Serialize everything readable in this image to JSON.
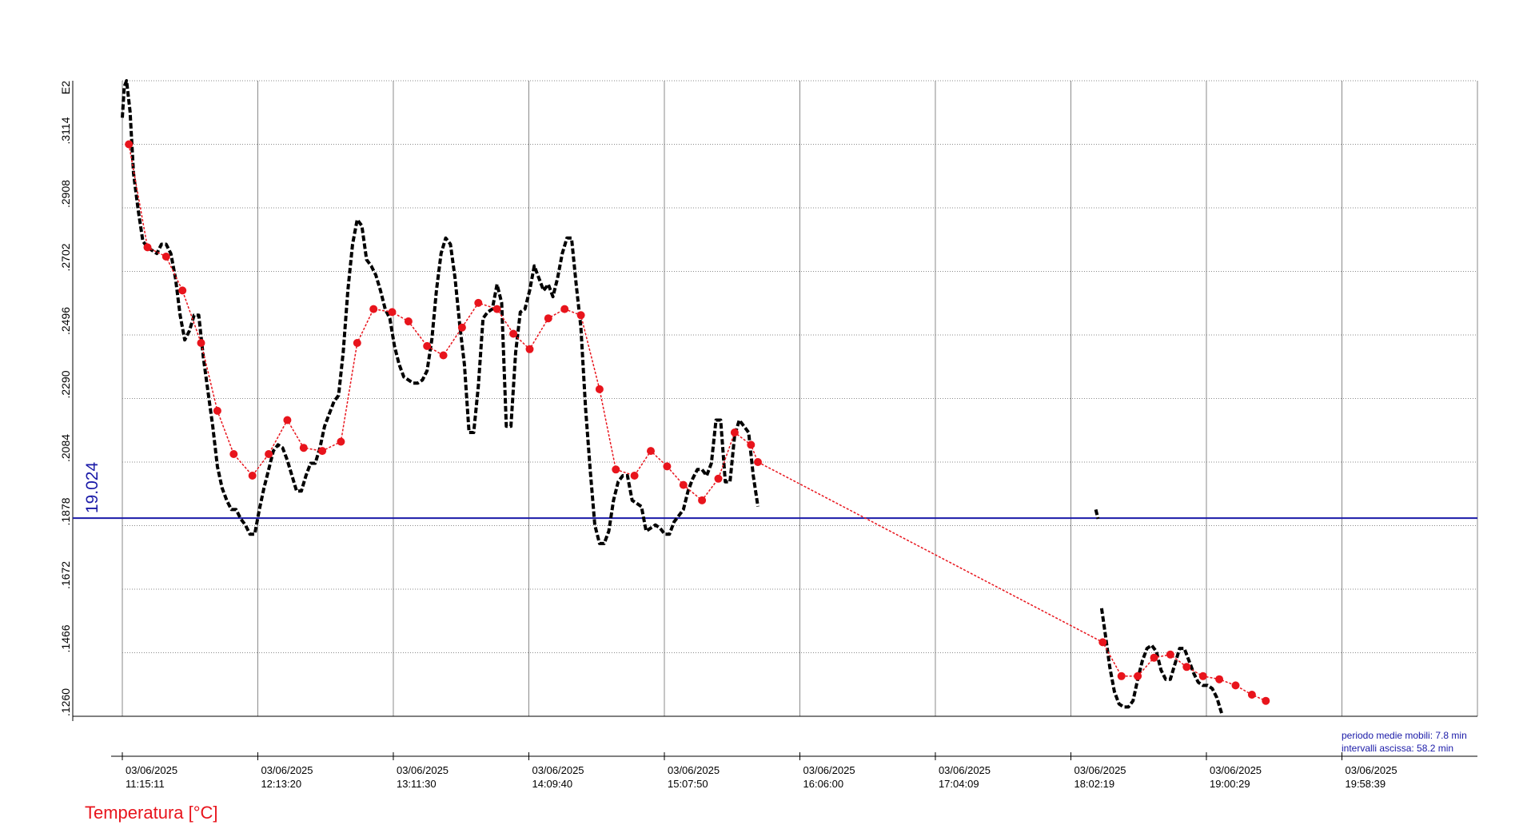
{
  "chart_data": {
    "type": "line",
    "y_exponent_label": "E2",
    "ylabel": "Temperatura [°C]",
    "ylim": [
      0.126,
      0.332
    ],
    "ytick_values": [
      0.126,
      0.1466,
      0.1672,
      0.1878,
      0.2084,
      0.229,
      0.2496,
      0.2702,
      0.2908,
      0.3114
    ],
    "ytick_labels": [
      ".1260",
      ".1466",
      ".1672",
      ".1878",
      ".2084",
      ".2290",
      ".2496",
      ".2702",
      ".2908",
      ".3114"
    ],
    "x_start": "11:15:11",
    "x_end": "20:56:49",
    "xtick_labels": [
      {
        "date": "03/06/2025",
        "time": "11:15:11"
      },
      {
        "date": "03/06/2025",
        "time": "12:13:20"
      },
      {
        "date": "03/06/2025",
        "time": "13:11:30"
      },
      {
        "date": "03/06/2025",
        "time": "14:09:40"
      },
      {
        "date": "03/06/2025",
        "time": "15:07:50"
      },
      {
        "date": "03/06/2025",
        "time": "16:06:00"
      },
      {
        "date": "03/06/2025",
        "time": "17:04:09"
      },
      {
        "date": "03/06/2025",
        "time": "18:02:19"
      },
      {
        "date": "03/06/2025",
        "time": "19:00:29"
      },
      {
        "date": "03/06/2025",
        "time": "19:58:39"
      }
    ],
    "reference_line": {
      "value": 0.19024,
      "label": "19.024",
      "color": "#1a1aa8"
    },
    "annotations": [
      "periodo medie mobili: 7.8 min",
      "intervalli ascissa: 58.2 min"
    ],
    "grid": true,
    "series": [
      {
        "kind": "raw",
        "color": "#000000",
        "segments": [
          [
            [
              "11:15:11",
              0.32
            ],
            [
              "11:16:00",
              0.33
            ],
            [
              "11:17:00",
              0.332
            ],
            [
              "11:18:30",
              0.322
            ],
            [
              "11:20:00",
              0.302
            ],
            [
              "11:22:00",
              0.29
            ],
            [
              "11:24:00",
              0.28
            ],
            [
              "11:26:00",
              0.278
            ],
            [
              "11:28:00",
              0.277
            ],
            [
              "11:30:00",
              0.276
            ],
            [
              "11:32:00",
              0.279
            ],
            [
              "11:34:00",
              0.279
            ],
            [
              "11:36:00",
              0.276
            ],
            [
              "11:38:00",
              0.268
            ],
            [
              "11:40:00",
              0.256
            ],
            [
              "11:42:00",
              0.248
            ],
            [
              "11:44:00",
              0.251
            ],
            [
              "11:46:00",
              0.256
            ],
            [
              "11:48:00",
              0.256
            ],
            [
              "11:50:00",
              0.242
            ],
            [
              "11:52:00",
              0.231
            ],
            [
              "11:54:00",
              0.22
            ],
            [
              "11:56:00",
              0.207
            ],
            [
              "11:58:00",
              0.2
            ],
            [
              "12:00:00",
              0.196
            ],
            [
              "12:02:00",
              0.193
            ],
            [
              "12:04:00",
              0.193
            ],
            [
              "12:06:00",
              0.19
            ],
            [
              "12:08:00",
              0.188
            ],
            [
              "12:10:00",
              0.185
            ],
            [
              "12:12:00",
              0.185
            ],
            [
              "12:14:00",
              0.193
            ],
            [
              "12:16:00",
              0.2
            ],
            [
              "12:18:00",
              0.206
            ],
            [
              "12:20:00",
              0.212
            ],
            [
              "12:22:00",
              0.214
            ],
            [
              "12:24:00",
              0.213
            ],
            [
              "12:26:00",
              0.209
            ],
            [
              "12:28:00",
              0.204
            ],
            [
              "12:30:00",
              0.199
            ],
            [
              "12:32:00",
              0.199
            ],
            [
              "12:34:00",
              0.204
            ],
            [
              "12:36:00",
              0.208
            ],
            [
              "12:38:00",
              0.208
            ],
            [
              "12:40:00",
              0.213
            ],
            [
              "12:42:00",
              0.22
            ],
            [
              "12:44:00",
              0.224
            ],
            [
              "12:46:00",
              0.228
            ],
            [
              "12:48:00",
              0.23
            ],
            [
              "12:50:00",
              0.244
            ],
            [
              "12:52:00",
              0.264
            ],
            [
              "12:54:00",
              0.279
            ],
            [
              "12:56:00",
              0.287
            ],
            [
              "12:58:00",
              0.285
            ],
            [
              "13:00:00",
              0.274
            ],
            [
              "13:02:00",
              0.272
            ],
            [
              "13:04:00",
              0.269
            ],
            [
              "13:06:00",
              0.264
            ],
            [
              "13:08:00",
              0.258
            ],
            [
              "13:10:00",
              0.255
            ],
            [
              "13:12:00",
              0.246
            ],
            [
              "13:14:00",
              0.24
            ],
            [
              "13:16:00",
              0.236
            ],
            [
              "13:18:00",
              0.235
            ],
            [
              "13:20:00",
              0.234
            ],
            [
              "13:22:00",
              0.234
            ],
            [
              "13:24:00",
              0.235
            ],
            [
              "13:26:00",
              0.238
            ],
            [
              "13:28:00",
              0.248
            ],
            [
              "13:30:00",
              0.264
            ],
            [
              "13:32:00",
              0.276
            ],
            [
              "13:34:00",
              0.281
            ],
            [
              "13:36:00",
              0.279
            ],
            [
              "13:38:00",
              0.268
            ],
            [
              "13:40:00",
              0.253
            ],
            [
              "13:42:00",
              0.24
            ],
            [
              "13:44:00",
              0.218
            ],
            [
              "13:46:00",
              0.218
            ],
            [
              "13:48:00",
              0.233
            ],
            [
              "13:50:00",
              0.255
            ],
            [
              "13:52:00",
              0.257
            ],
            [
              "13:54:00",
              0.258
            ],
            [
              "13:56:00",
              0.266
            ],
            [
              "13:58:00",
              0.26
            ],
            [
              "14:00:00",
              0.22
            ],
            [
              "14:02:00",
              0.22
            ],
            [
              "14:04:00",
              0.244
            ],
            [
              "14:06:00",
              0.257
            ],
            [
              "14:08:00",
              0.258
            ],
            [
              "14:10:00",
              0.264
            ],
            [
              "14:12:00",
              0.272
            ],
            [
              "14:14:00",
              0.268
            ],
            [
              "14:16:00",
              0.264
            ],
            [
              "14:18:00",
              0.266
            ],
            [
              "14:20:00",
              0.262
            ],
            [
              "14:22:00",
              0.268
            ],
            [
              "14:24:00",
              0.276
            ],
            [
              "14:26:00",
              0.281
            ],
            [
              "14:28:00",
              0.281
            ],
            [
              "14:30:00",
              0.266
            ],
            [
              "14:32:00",
              0.252
            ],
            [
              "14:34:00",
              0.226
            ],
            [
              "14:36:00",
              0.206
            ],
            [
              "14:38:00",
              0.188
            ],
            [
              "14:40:00",
              0.182
            ],
            [
              "14:42:00",
              0.182
            ],
            [
              "14:44:00",
              0.186
            ],
            [
              "14:46:00",
              0.196
            ],
            [
              "14:48:00",
              0.202
            ],
            [
              "14:50:00",
              0.204
            ],
            [
              "14:52:00",
              0.204
            ],
            [
              "14:54:00",
              0.196
            ],
            [
              "14:56:00",
              0.195
            ],
            [
              "14:58:00",
              0.194
            ],
            [
              "15:00:00",
              0.186
            ],
            [
              "15:02:00",
              0.187
            ],
            [
              "15:04:00",
              0.188
            ],
            [
              "15:06:00",
              0.187
            ],
            [
              "15:08:00",
              0.185
            ],
            [
              "15:10:00",
              0.185
            ],
            [
              "15:12:00",
              0.189
            ],
            [
              "15:14:00",
              0.191
            ],
            [
              "15:16:00",
              0.193
            ],
            [
              "15:18:00",
              0.199
            ],
            [
              "15:20:00",
              0.203
            ],
            [
              "15:22:00",
              0.206
            ],
            [
              "15:24:00",
              0.206
            ],
            [
              "15:26:00",
              0.204
            ],
            [
              "15:28:00",
              0.208
            ],
            [
              "15:30:00",
              0.222
            ],
            [
              "15:32:00",
              0.222
            ],
            [
              "15:34:00",
              0.202
            ],
            [
              "15:36:00",
              0.202
            ],
            [
              "15:38:00",
              0.217
            ],
            [
              "15:40:00",
              0.222
            ],
            [
              "15:42:00",
              0.22
            ],
            [
              "15:44:00",
              0.218
            ],
            [
              "15:46:00",
              0.204
            ],
            [
              "15:48:00",
              0.194
            ]
          ],
          [
            [
              "18:13:00",
              0.193
            ],
            [
              "18:14:00",
              0.19
            ]
          ],
          [
            [
              "18:15:30",
              0.161
            ],
            [
              "18:17:00",
              0.153
            ],
            [
              "18:19:00",
              0.142
            ],
            [
              "18:21:00",
              0.134
            ],
            [
              "18:23:00",
              0.13
            ],
            [
              "18:25:00",
              0.129
            ],
            [
              "18:27:00",
              0.129
            ],
            [
              "18:29:00",
              0.131
            ],
            [
              "18:31:00",
              0.138
            ],
            [
              "18:33:00",
              0.144
            ],
            [
              "18:35:00",
              0.148
            ],
            [
              "18:37:00",
              0.149
            ],
            [
              "18:39:00",
              0.147
            ],
            [
              "18:41:00",
              0.141
            ],
            [
              "18:43:00",
              0.138
            ],
            [
              "18:45:00",
              0.138
            ],
            [
              "18:47:00",
              0.143
            ],
            [
              "18:49:00",
              0.148
            ],
            [
              "18:51:00",
              0.148
            ],
            [
              "18:53:00",
              0.144
            ],
            [
              "18:55:00",
              0.14
            ],
            [
              "18:57:00",
              0.137
            ],
            [
              "18:59:00",
              0.136
            ],
            [
              "19:01:00",
              0.136
            ],
            [
              "19:03:00",
              0.135
            ],
            [
              "19:05:00",
              0.132
            ],
            [
              "19:07:00",
              0.127
            ]
          ]
        ]
      },
      {
        "kind": "moving-average",
        "color": "#e8141c",
        "points": [
          [
            "11:18:00",
            0.3114
          ],
          [
            "11:26:00",
            0.278
          ],
          [
            "11:34:00",
            0.275
          ],
          [
            "11:41:00",
            0.264
          ],
          [
            "11:49:00",
            0.247
          ],
          [
            "11:56:00",
            0.225
          ],
          [
            "12:03:00",
            0.211
          ],
          [
            "12:11:00",
            0.204
          ],
          [
            "12:18:00",
            0.211
          ],
          [
            "12:26:00",
            0.222
          ],
          [
            "12:33:00",
            0.213
          ],
          [
            "12:41:00",
            0.212
          ],
          [
            "12:49:00",
            0.215
          ],
          [
            "12:56:00",
            0.247
          ],
          [
            "13:03:00",
            0.258
          ],
          [
            "13:11:00",
            0.257
          ],
          [
            "13:18:00",
            0.254
          ],
          [
            "13:26:00",
            0.246
          ],
          [
            "13:33:00",
            0.243
          ],
          [
            "13:41:00",
            0.252
          ],
          [
            "13:48:00",
            0.26
          ],
          [
            "13:56:00",
            0.258
          ],
          [
            "14:03:00",
            0.25
          ],
          [
            "14:10:00",
            0.245
          ],
          [
            "14:18:00",
            0.255
          ],
          [
            "14:25:00",
            0.258
          ],
          [
            "14:32:00",
            0.256
          ],
          [
            "14:40:00",
            0.232
          ],
          [
            "14:47:00",
            0.206
          ],
          [
            "14:55:00",
            0.204
          ],
          [
            "15:02:00",
            0.212
          ],
          [
            "15:09:00",
            0.207
          ],
          [
            "15:16:00",
            0.201
          ],
          [
            "15:24:00",
            0.196
          ],
          [
            "15:31:00",
            0.203
          ],
          [
            "15:38:00",
            0.218
          ],
          [
            "15:45:00",
            0.214
          ],
          [
            "15:48:00",
            0.2084
          ],
          [
            "18:16:00",
            0.15
          ],
          [
            "18:24:00",
            0.139
          ],
          [
            "18:31:00",
            0.139
          ],
          [
            "18:38:00",
            0.145
          ],
          [
            "18:45:00",
            0.146
          ],
          [
            "18:52:00",
            0.142
          ],
          [
            "18:59:00",
            0.139
          ],
          [
            "19:06:00",
            0.138
          ],
          [
            "19:13:00",
            0.136
          ],
          [
            "19:20:00",
            0.133
          ],
          [
            "19:26:00",
            0.131
          ]
        ]
      }
    ]
  }
}
